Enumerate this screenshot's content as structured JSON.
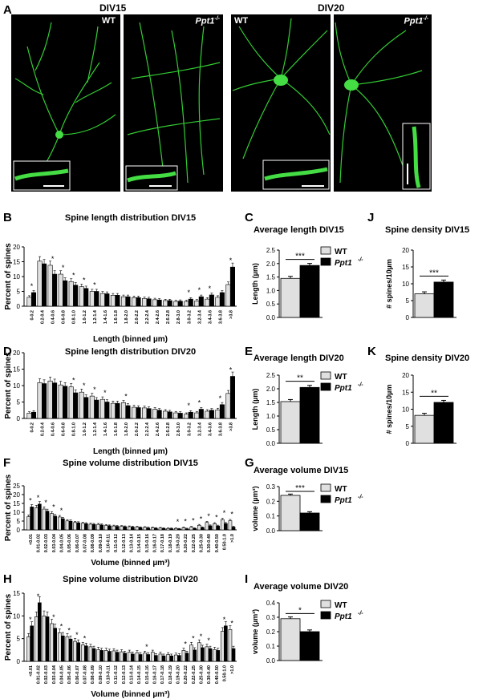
{
  "figure": {
    "panel_A": {
      "letter": "A",
      "group_labels": [
        "DIV15",
        "DIV20"
      ],
      "images": [
        {
          "genotype": "WT"
        },
        {
          "genotype": "Ppt1",
          "sup": "-/-"
        },
        {
          "genotype": "WT"
        },
        {
          "genotype": "Ppt1",
          "sup": "-/-"
        }
      ]
    },
    "legend": {
      "wt": "WT",
      "ppt1": "Ppt1",
      "ppt1_sup": "-/-"
    },
    "colors": {
      "wt_fill": "#e0e0e0",
      "ppt1_fill": "#000000",
      "neuron": "#33cc33",
      "background_image": "#000000"
    }
  },
  "chart_data": [
    {
      "id": "B",
      "type": "bar",
      "title": "Spine length distribution DIV15",
      "ylabel": "Percent of spines",
      "xlabel": "Length (binned µm)",
      "ylim": [
        0,
        20
      ],
      "yticks": [
        0,
        5,
        10,
        15,
        20
      ],
      "categories": [
        "0-0.2",
        "0.2-0.4",
        "0.4-0.6",
        "0.6-0.8",
        "0.8-1.0",
        "1.0-1.2",
        "1.2-1.4",
        "1.4-1.6",
        "1.6-1.8",
        "1.8-2.0",
        "2.0-2.2",
        "2.2-2.4",
        "2.4-2.6",
        "2.6-2.8",
        "2.8-3.0",
        "3.0-3.2",
        "3.2-3.4",
        "3.4-3.6",
        "3.6-3.8",
        ">3.8"
      ],
      "series": [
        {
          "name": "WT",
          "values": [
            3.0,
            15.2,
            13.8,
            10.8,
            8.3,
            6.6,
            5.0,
            4.3,
            3.7,
            3.2,
            2.9,
            2.6,
            2.2,
            1.9,
            1.6,
            1.6,
            1.8,
            2.4,
            3.0,
            7.3
          ]
        },
        {
          "name": "Ppt1-/-",
          "values": [
            4.6,
            14.3,
            10.8,
            8.6,
            7.1,
            6.0,
            5.0,
            4.2,
            3.7,
            3.2,
            2.9,
            2.5,
            2.1,
            1.9,
            1.7,
            2.4,
            3.2,
            3.8,
            4.6,
            13.2
          ]
        }
      ],
      "significance": [
        "*",
        "",
        "*",
        "*",
        "*",
        "*",
        "*",
        "",
        "",
        "",
        "",
        "",
        "",
        "",
        "",
        "*",
        "*",
        "*",
        "",
        "*"
      ]
    },
    {
      "id": "D",
      "type": "bar",
      "title": "Spine length distribution DIV20",
      "ylabel": "Percent of spines",
      "xlabel": "Length (binned µm)",
      "ylim": [
        0,
        20
      ],
      "yticks": [
        0,
        5,
        10,
        15,
        20
      ],
      "categories": [
        "0-0.2",
        "0.2-0.4",
        "0.4-0.6",
        "0.6-0.8",
        "0.8-1.0",
        "1.0-1.2",
        "1.2-1.4",
        "1.4-1.6",
        "1.6-1.8",
        "1.8-2.0",
        "2.0-2.2",
        "2.2-2.4",
        "2.4-2.6",
        "2.6-2.8",
        "2.8-3.0",
        "3.0-3.2",
        "3.2-3.4",
        "3.4-3.6",
        "3.6-3.8",
        ">3.8"
      ],
      "series": [
        {
          "name": "WT",
          "values": [
            1.6,
            10.9,
            11.4,
            10.2,
            9.6,
            8.0,
            6.8,
            5.8,
            4.6,
            4.8,
            3.4,
            3.2,
            2.8,
            2.2,
            1.7,
            1.3,
            1.7,
            2.2,
            2.6,
            7.6
          ]
        },
        {
          "name": "Ppt1-/-",
          "values": [
            1.9,
            10.6,
            10.8,
            9.8,
            7.8,
            6.4,
            5.6,
            5.0,
            4.6,
            3.9,
            3.3,
            3.0,
            2.5,
            2.0,
            1.6,
            1.9,
            2.8,
            2.5,
            4.2,
            12.8
          ]
        }
      ],
      "significance": [
        "",
        "",
        "",
        "",
        "*",
        "*",
        "*",
        "*",
        "",
        "*",
        "",
        "",
        "",
        "",
        "",
        "*",
        "*",
        "",
        "*",
        "*"
      ]
    },
    {
      "id": "F",
      "type": "bar",
      "title": "Spine volume distribution DIV15",
      "ylabel": "Percent of spines",
      "xlabel": "Volume (binned µm³)",
      "ylim": [
        0,
        25
      ],
      "yticks": [
        0,
        5,
        10,
        15,
        20,
        25
      ],
      "categories": [
        "<0.01",
        "0.01-0.02",
        "0.02-0.03",
        "0.03-0.04",
        "0.04-0.05",
        "0.05-0.06",
        "0.06-0.07",
        "0.07-0.08",
        "0.08-0.09",
        "0.09-0.10",
        "0.10-0.11",
        "0.11-0.12",
        "0.12-0.13",
        "0.13-0.14",
        "0.14-0.15",
        "0.15-0.16",
        "0.16-0.17",
        "0.17-0.18",
        "0.18-0.19",
        "0.19-0.20",
        "0.20-0.22",
        "0.22-0.25",
        "0.25-0.30",
        "0.30-0.40",
        "0.40-0.50",
        "0.50-1.0",
        ">1.0"
      ],
      "series": [
        {
          "name": "WT",
          "values": [
            7.5,
            12.6,
            11.8,
            9.3,
            7.3,
            5.1,
            4.2,
            3.7,
            3.2,
            3.1,
            2.5,
            2.2,
            2.0,
            1.8,
            1.6,
            1.4,
            1.2,
            1.0,
            0.8,
            0.8,
            1.2,
            1.5,
            2.6,
            4.2,
            3.5,
            5.8,
            5.2
          ]
        },
        {
          "name": "Ppt1-/-",
          "values": [
            13.0,
            14.6,
            10.6,
            7.8,
            6.3,
            4.9,
            4.0,
            3.5,
            3.1,
            2.8,
            2.3,
            2.0,
            1.8,
            1.6,
            1.3,
            1.1,
            0.9,
            0.8,
            0.7,
            0.5,
            0.6,
            0.8,
            1.3,
            2.3,
            2.2,
            3.6,
            1.6
          ]
        }
      ],
      "significance": [
        "*",
        "*",
        "*",
        "*",
        "*",
        "",
        "",
        "",
        "",
        "",
        "",
        "",
        "",
        "",
        "",
        "",
        "",
        "",
        "",
        "*",
        "*",
        "*",
        "*",
        "*",
        "*",
        "*",
        "*"
      ]
    },
    {
      "id": "H",
      "type": "bar",
      "title": "Spine volume distribution DIV20",
      "ylabel": "Percent of spines",
      "xlabel": "Volume (binned µm³)",
      "ylim": [
        0,
        15
      ],
      "yticks": [
        0,
        5,
        10,
        15
      ],
      "categories": [
        "<0.01",
        "0.01-0.02",
        "0.02-0.03",
        "0.03-0.04",
        "0.04-0.05",
        "0.05-0.06",
        "0.06-0.07",
        "0.07-0.08",
        "0.08-0.09",
        "0.09-0.10",
        "0.10-0.11",
        "0.11-0.12",
        "0.12-0.13",
        "0.13-0.14",
        "0.14-0.15",
        "0.15-0.16",
        "0.16-0.17",
        "0.17-0.18",
        "0.18-0.19",
        "0.19-0.20",
        "0.20-0.22",
        "0.22-0.25",
        "0.25-0.30",
        "0.30-0.40",
        "0.40-0.50",
        "0.50-1.0",
        ">1.0"
      ],
      "series": [
        {
          "name": "WT",
          "values": [
            5.4,
            9.8,
            10.0,
            8.3,
            6.3,
            5.4,
            4.4,
            3.6,
            3.2,
            2.6,
            2.4,
            2.3,
            2.1,
            2.0,
            1.9,
            1.8,
            2.0,
            1.6,
            1.5,
            1.4,
            2.4,
            3.6,
            4.1,
            3.2,
            2.6,
            6.6,
            7.0
          ]
        },
        {
          "name": "Ppt1-/-",
          "values": [
            7.8,
            12.9,
            9.8,
            7.3,
            5.6,
            4.9,
            4.1,
            3.4,
            2.8,
            2.4,
            2.2,
            2.0,
            1.8,
            1.6,
            1.5,
            1.5,
            1.3,
            1.2,
            1.2,
            1.3,
            1.8,
            2.5,
            3.0,
            2.8,
            2.4,
            7.8,
            2.8
          ]
        }
      ],
      "significance": [
        "*",
        "*",
        "",
        "*",
        "*",
        "*",
        "*",
        "*",
        "",
        "",
        "",
        "",
        "",
        "",
        "",
        "*",
        "",
        "",
        "",
        "",
        "*",
        "*",
        "*",
        "*",
        "",
        "*",
        "*"
      ]
    },
    {
      "id": "C",
      "type": "bar",
      "title": "Average length DIV15",
      "ylabel": "Length (µm)",
      "ylim": [
        0,
        2.5
      ],
      "yticks": [
        "0.0",
        "0.5",
        "1.0",
        "1.5",
        "2.0",
        "2.5"
      ],
      "categories": [
        "WT",
        "Ppt1-/-"
      ],
      "values": [
        1.45,
        1.93
      ],
      "significance": "***"
    },
    {
      "id": "E",
      "type": "bar",
      "title": "Average length DIV20",
      "ylabel": "Length (µm)",
      "ylim": [
        0,
        2.5
      ],
      "yticks": [
        "0.0",
        "0.5",
        "1.0",
        "1.5",
        "2.0",
        "2.5"
      ],
      "categories": [
        "WT",
        "Ppt1-/-"
      ],
      "values": [
        1.53,
        2.05
      ],
      "significance": "**"
    },
    {
      "id": "G",
      "type": "bar",
      "title": "Average volume DIV15",
      "ylabel": "volume (µm³)",
      "ylim": [
        0,
        0.3
      ],
      "yticks": [
        "0.0",
        "0.1",
        "0.2",
        "0.3"
      ],
      "categories": [
        "WT",
        "Ppt1-/-"
      ],
      "values": [
        0.24,
        0.12
      ],
      "significance": "***"
    },
    {
      "id": "I",
      "type": "bar",
      "title": "Average volume DIV20",
      "ylabel": "volume (µm³)",
      "ylim": [
        0,
        0.4
      ],
      "yticks": [
        "0.0",
        "0.1",
        "0.2",
        "0.3",
        "0.4"
      ],
      "categories": [
        "WT",
        "Ppt1-/-"
      ],
      "values": [
        0.29,
        0.2
      ],
      "significance": "*"
    },
    {
      "id": "J",
      "type": "bar",
      "title": "Spine density DIV15",
      "ylabel": "# spines/10µm",
      "ylim": [
        0,
        20
      ],
      "yticks": [
        "0",
        "5",
        "10",
        "15",
        "20"
      ],
      "categories": [
        "WT",
        "Ppt1-/-"
      ],
      "values": [
        7.0,
        10.5
      ],
      "significance": "***"
    },
    {
      "id": "K",
      "type": "bar",
      "title": "Spine density DIV20",
      "ylabel": "# spines/10µm",
      "ylim": [
        0,
        20
      ],
      "yticks": [
        "0",
        "5",
        "10",
        "15",
        "20"
      ],
      "categories": [
        "WT",
        "Ppt1-/-"
      ],
      "values": [
        8.2,
        12.0
      ],
      "significance": "**"
    }
  ]
}
